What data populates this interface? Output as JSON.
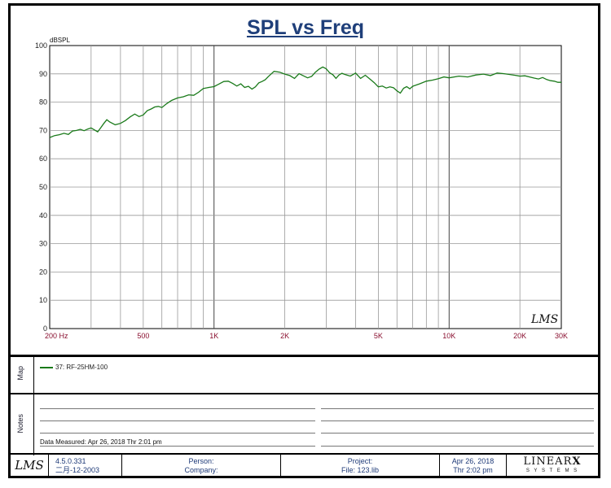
{
  "title": "SPL vs Freq",
  "chart_data": {
    "type": "line",
    "title": "SPL vs Freq",
    "ylabel": "dBSPL",
    "xlabel": "",
    "x_scale": "log",
    "xlim": [
      200,
      30000
    ],
    "ylim": [
      0,
      100
    ],
    "grid": true,
    "y_ticks": [
      "0",
      "10",
      "20",
      "30",
      "40",
      "50",
      "60",
      "70",
      "80",
      "90",
      "100"
    ],
    "x_ticks": [
      {
        "value": 200,
        "label": "200  Hz"
      },
      {
        "value": 500,
        "label": "500"
      },
      {
        "value": 1000,
        "label": "1K"
      },
      {
        "value": 2000,
        "label": "2K"
      },
      {
        "value": 5000,
        "label": "5K"
      },
      {
        "value": 10000,
        "label": "10K"
      },
      {
        "value": 20000,
        "label": "20K"
      },
      {
        "value": 30000,
        "label": "30K"
      }
    ],
    "series": [
      {
        "name": "37: RF-25HM-100",
        "color": "#1a7a1a",
        "x": [
          200,
          210,
          220,
          230,
          240,
          250,
          260,
          270,
          280,
          290,
          300,
          310,
          320,
          330,
          340,
          350,
          360,
          380,
          400,
          420,
          440,
          460,
          480,
          500,
          520,
          540,
          560,
          580,
          600,
          630,
          660,
          700,
          740,
          780,
          820,
          860,
          900,
          950,
          1000,
          1050,
          1100,
          1150,
          1200,
          1250,
          1300,
          1350,
          1400,
          1450,
          1500,
          1550,
          1600,
          1650,
          1700,
          1800,
          1900,
          2000,
          2100,
          2200,
          2300,
          2400,
          2500,
          2600,
          2700,
          2800,
          2900,
          3000,
          3100,
          3200,
          3300,
          3400,
          3500,
          3600,
          3800,
          4000,
          4200,
          4400,
          4600,
          4800,
          5000,
          5200,
          5400,
          5600,
          5800,
          6000,
          6200,
          6400,
          6600,
          6800,
          7000,
          7500,
          8000,
          8500,
          9000,
          9500,
          10000,
          11000,
          12000,
          13000,
          14000,
          15000,
          16000,
          17000,
          18000,
          19000,
          20000,
          21000,
          22000,
          23000,
          24000,
          25000,
          26000,
          27000,
          28000,
          29000,
          30000
        ],
        "y": [
          67.5,
          68.2,
          68.5,
          69.0,
          68.6,
          69.8,
          70.0,
          70.4,
          69.9,
          70.5,
          70.9,
          70.2,
          69.5,
          71.0,
          72.5,
          73.8,
          73.0,
          72.0,
          72.5,
          73.5,
          74.8,
          75.8,
          74.9,
          75.5,
          77.0,
          77.6,
          78.3,
          78.5,
          78.1,
          79.5,
          80.6,
          81.5,
          81.9,
          82.6,
          82.4,
          83.5,
          84.8,
          85.2,
          85.5,
          86.4,
          87.3,
          87.4,
          86.6,
          85.7,
          86.5,
          85.2,
          85.6,
          84.6,
          85.4,
          86.8,
          87.3,
          87.9,
          89.0,
          90.9,
          90.6,
          89.9,
          89.4,
          88.4,
          90.1,
          89.3,
          88.6,
          89.1,
          90.6,
          91.7,
          92.4,
          91.8,
          90.4,
          89.7,
          88.4,
          89.6,
          90.2,
          89.8,
          89.2,
          90.3,
          88.4,
          89.5,
          88.2,
          86.9,
          85.4,
          85.7,
          85.0,
          85.4,
          85.1,
          84.0,
          83.2,
          84.9,
          85.5,
          84.7,
          85.6,
          86.5,
          87.4,
          87.8,
          88.3,
          88.9,
          88.6,
          89.2,
          88.9,
          89.6,
          89.9,
          89.4,
          90.3,
          90.1,
          89.8,
          89.5,
          89.2,
          89.3,
          88.9,
          88.5,
          88.2,
          88.7,
          88.0,
          87.6,
          87.4,
          87.0,
          87.0
        ]
      }
    ]
  },
  "logo_text": "LMS",
  "map_panel": {
    "label": "Map"
  },
  "notes_panel": {
    "label": "Notes",
    "data_measured": "Data Measured: Apr 26, 2018  Thr  2:01 pm"
  },
  "footer": {
    "version": "4.5.0.331",
    "version_date": "二月-12-2003",
    "person_label": "Person:",
    "company_label": "Company:",
    "project_label": "Project:",
    "file_label": "File: 123.lib",
    "date": "Apr 26, 2018",
    "time": "Thr  2:02 pm",
    "brand_main": "LINEAR",
    "brand_x": "X",
    "brand_sub": "S Y S T E M S"
  }
}
